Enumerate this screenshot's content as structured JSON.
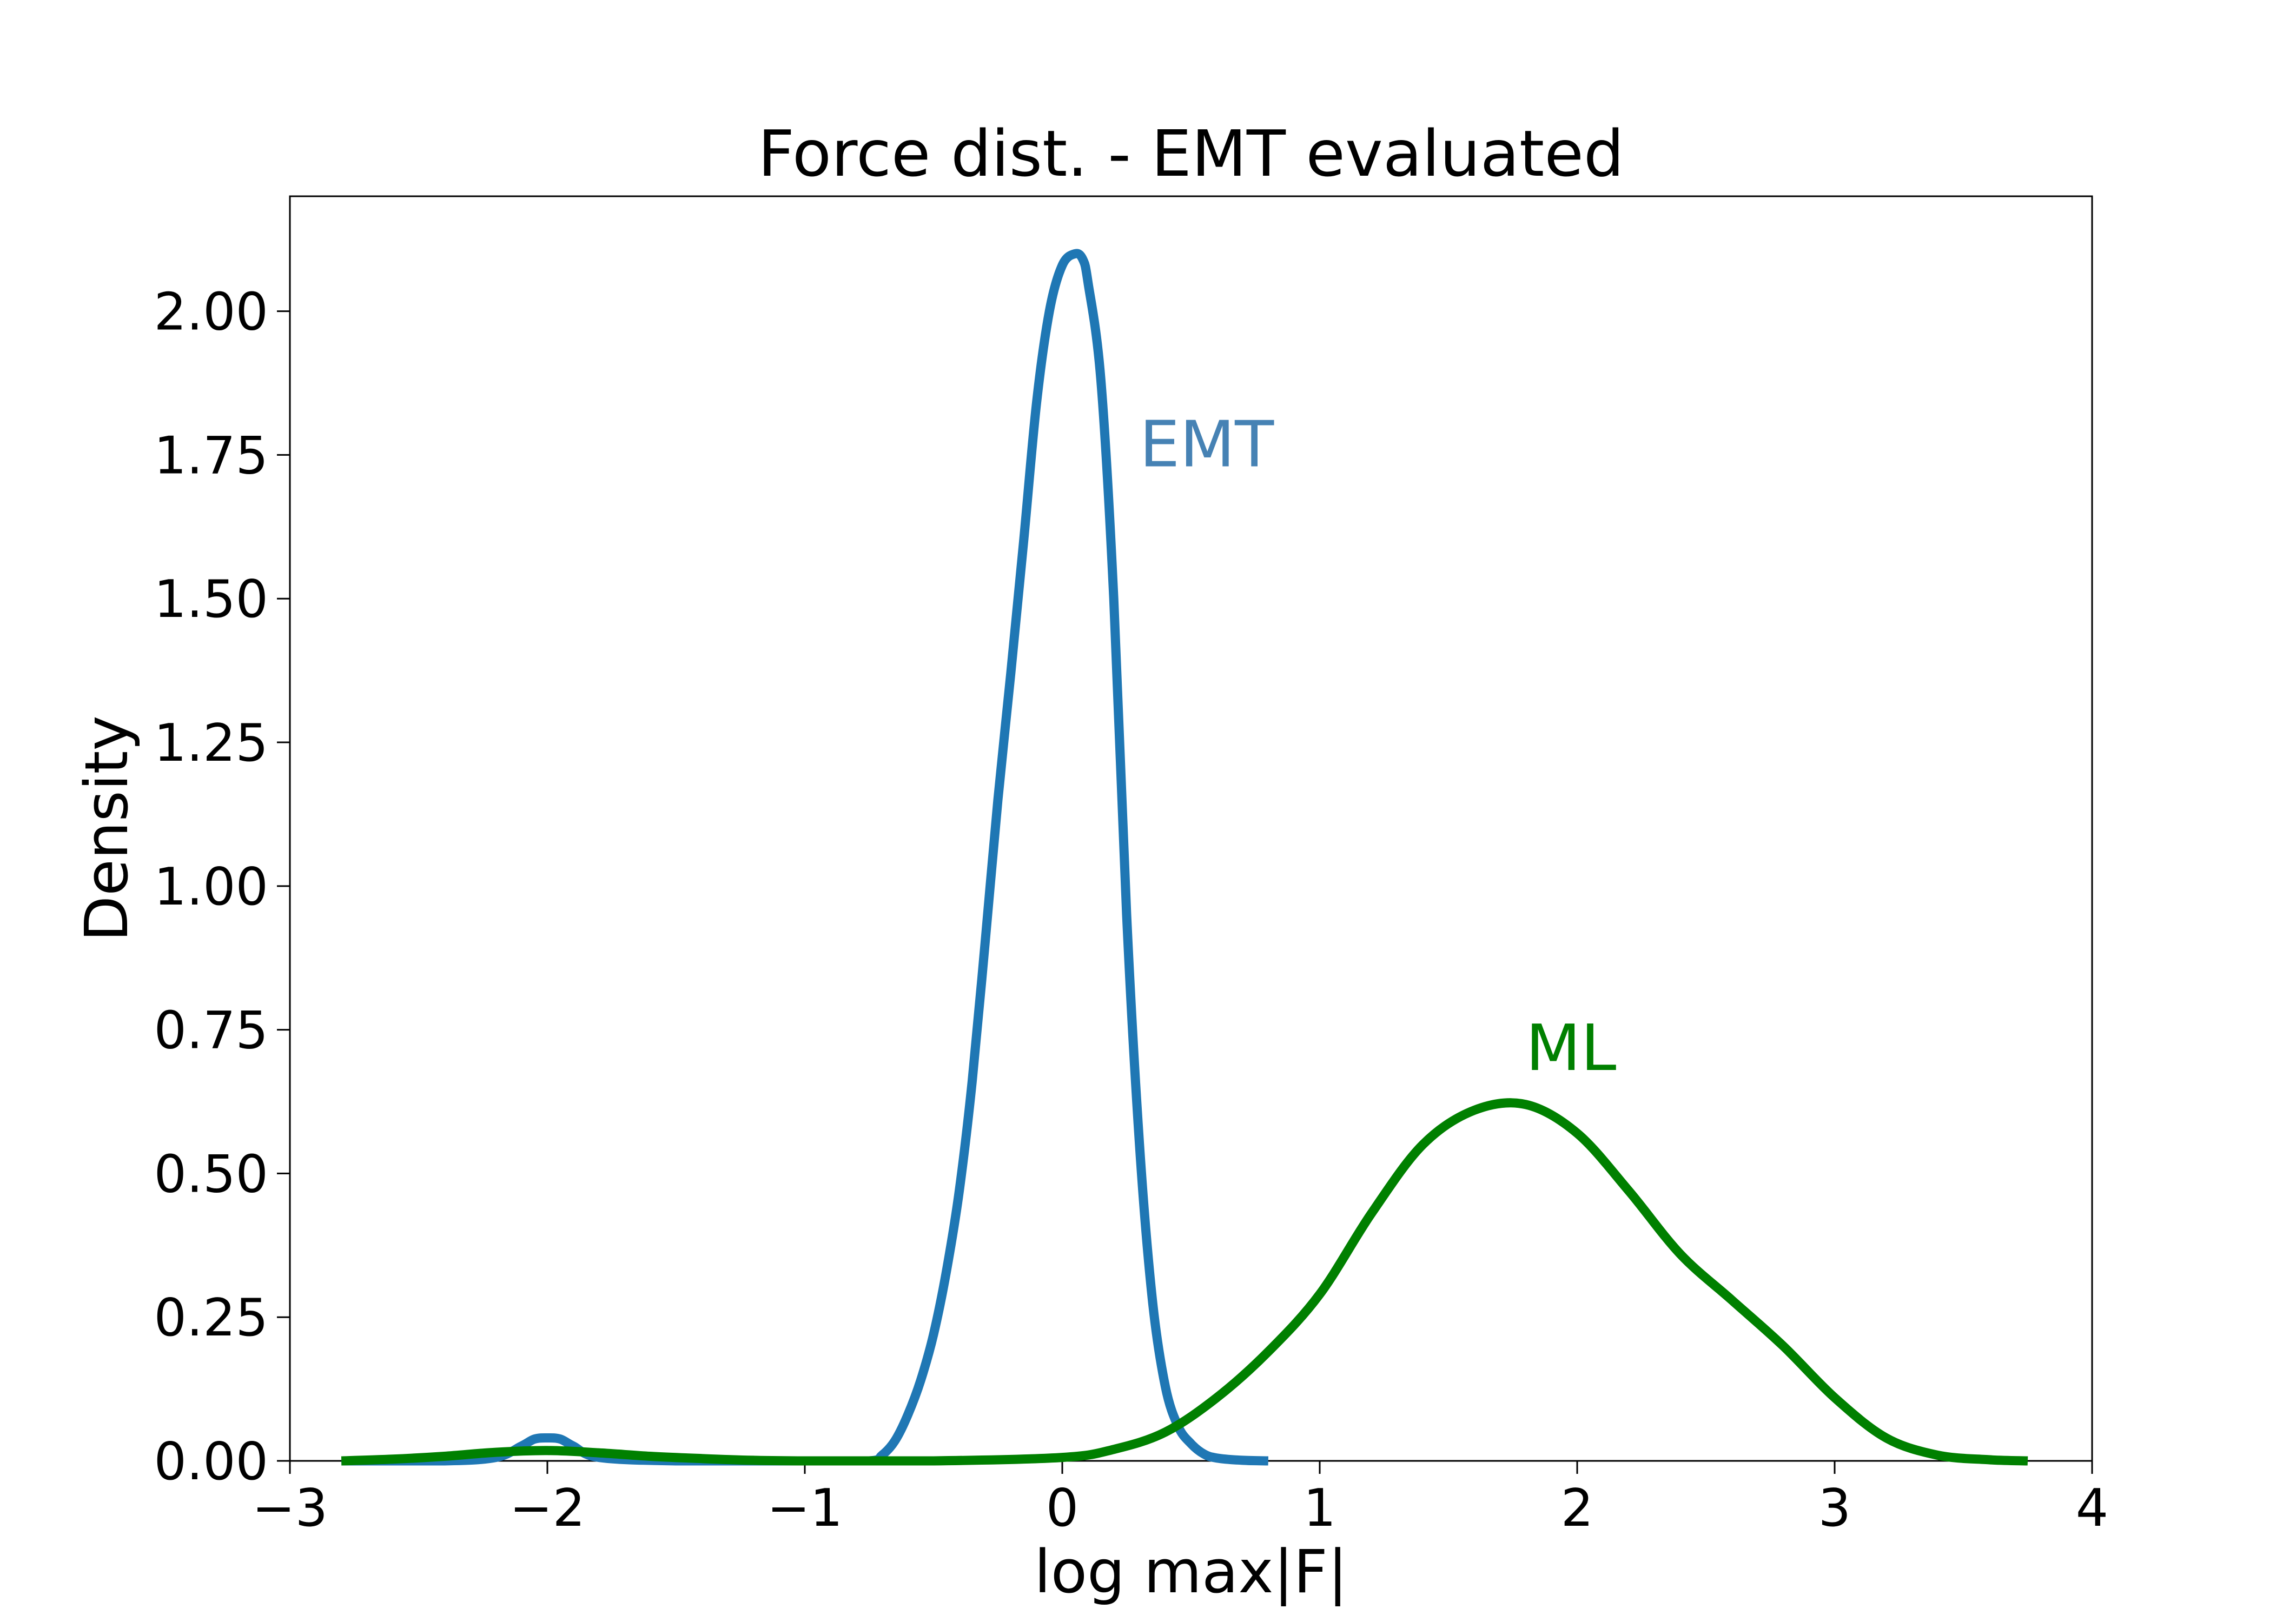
{
  "chart_data": {
    "type": "line",
    "title": "Force dist. - EMT evaluated",
    "xlabel": "log max|F|",
    "ylabel": "Density",
    "xlim": [
      -3,
      4
    ],
    "ylim": [
      0,
      2.2
    ],
    "x_ticks": [
      -3,
      -2,
      -1,
      0,
      1,
      2,
      3,
      4
    ],
    "x_tick_labels": [
      "−3",
      "−2",
      "−1",
      "0",
      "1",
      "2",
      "3",
      "4"
    ],
    "y_ticks": [
      0,
      0.25,
      0.5,
      0.75,
      1.0,
      1.25,
      1.5,
      1.75,
      2.0
    ],
    "y_tick_labels": [
      "0.00",
      "0.25",
      "0.50",
      "0.75",
      "1.00",
      "1.25",
      "1.50",
      "1.75",
      "2.00"
    ],
    "grid": false,
    "series": [
      {
        "name": "EMT",
        "color": "#1f77b4",
        "x": [
          -2.8,
          -2.4,
          -2.2,
          -2.1,
          -2.05,
          -2.0,
          -1.95,
          -1.9,
          -1.8,
          -1.5,
          -1.0,
          -0.75,
          -0.7,
          -0.65,
          -0.6,
          -0.55,
          -0.5,
          -0.45,
          -0.4,
          -0.35,
          -0.3,
          -0.25,
          -0.2,
          -0.15,
          -0.1,
          -0.05,
          0.0,
          0.05,
          0.08,
          0.1,
          0.15,
          0.2,
          0.25,
          0.3,
          0.35,
          0.4,
          0.45,
          0.5,
          0.55,
          0.6,
          0.7,
          0.8
        ],
        "y": [
          0.0,
          0.0,
          0.006,
          0.026,
          0.038,
          0.04,
          0.038,
          0.026,
          0.006,
          0.0,
          0.0,
          0.0,
          0.01,
          0.035,
          0.08,
          0.14,
          0.22,
          0.33,
          0.47,
          0.66,
          0.9,
          1.15,
          1.37,
          1.6,
          1.84,
          2.0,
          2.08,
          2.1,
          2.09,
          2.05,
          1.88,
          1.5,
          0.95,
          0.55,
          0.28,
          0.13,
          0.06,
          0.03,
          0.012,
          0.005,
          0.001,
          0.0
        ]
      },
      {
        "name": "ML",
        "color": "#008000",
        "x": [
          -2.8,
          -2.6,
          -2.4,
          -2.2,
          -2.0,
          -1.8,
          -1.6,
          -1.4,
          -1.2,
          -1.0,
          -0.5,
          0.0,
          0.2,
          0.4,
          0.6,
          0.8,
          1.0,
          1.2,
          1.4,
          1.6,
          1.8,
          2.0,
          2.2,
          2.4,
          2.6,
          2.8,
          3.0,
          3.2,
          3.4,
          3.6,
          3.75
        ],
        "y": [
          0.0,
          0.003,
          0.008,
          0.015,
          0.018,
          0.014,
          0.008,
          0.004,
          0.001,
          0.0,
          0.0,
          0.006,
          0.02,
          0.05,
          0.11,
          0.19,
          0.29,
          0.43,
          0.55,
          0.61,
          0.62,
          0.57,
          0.47,
          0.36,
          0.28,
          0.2,
          0.11,
          0.04,
          0.01,
          0.002,
          0.0
        ]
      }
    ],
    "annotations": [
      {
        "text": "EMT",
        "x": 0.3,
        "y": 1.73,
        "color": "#4682b4"
      },
      {
        "text": "ML",
        "x": 1.8,
        "y": 0.68,
        "color": "#008000"
      }
    ]
  }
}
